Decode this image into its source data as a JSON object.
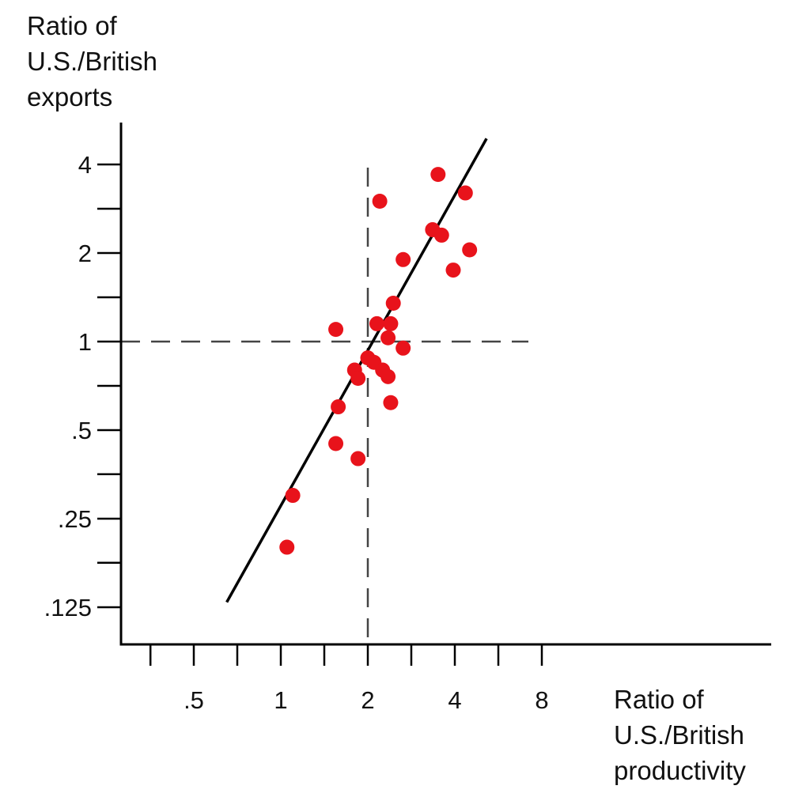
{
  "chart_data": {
    "type": "scatter",
    "title": "",
    "xlabel_lines": [
      "Ratio of",
      "U.S./British",
      "productivity"
    ],
    "ylabel_lines": [
      "Ratio of",
      "U.S./British",
      "exports"
    ],
    "x_scale": "log2",
    "y_scale": "log2",
    "xlim": [
      0.35,
      20
    ],
    "ylim": [
      0.1,
      5.5
    ],
    "x_ticks": [
      {
        "value": 0.354,
        "label": ""
      },
      {
        "value": 0.5,
        "label": ".5"
      },
      {
        "value": 0.707,
        "label": ""
      },
      {
        "value": 1,
        "label": "1"
      },
      {
        "value": 1.414,
        "label": ""
      },
      {
        "value": 2,
        "label": "2"
      },
      {
        "value": 2.828,
        "label": ""
      },
      {
        "value": 4,
        "label": "4"
      },
      {
        "value": 5.657,
        "label": ""
      },
      {
        "value": 8,
        "label": "8"
      }
    ],
    "y_ticks": [
      {
        "value": 0.125,
        "label": ".125"
      },
      {
        "value": 0.177,
        "label": ""
      },
      {
        "value": 0.25,
        "label": ".25"
      },
      {
        "value": 0.354,
        "label": ""
      },
      {
        "value": 0.5,
        "label": ".5"
      },
      {
        "value": 0.707,
        "label": ""
      },
      {
        "value": 1,
        "label": "1"
      },
      {
        "value": 1.414,
        "label": ""
      },
      {
        "value": 2,
        "label": "2"
      },
      {
        "value": 2.828,
        "label": ""
      },
      {
        "value": 4,
        "label": "4"
      }
    ],
    "reference_lines": {
      "x": 2,
      "y": 1,
      "style": "dashed"
    },
    "fit_line": {
      "x": [
        0.65,
        5.15
      ],
      "y": [
        0.13,
        4.9
      ]
    },
    "point_color": "#e8131b",
    "line_color": "#000000",
    "points": [
      {
        "x": 1.1,
        "y": 0.3
      },
      {
        "x": 1.05,
        "y": 0.2
      },
      {
        "x": 1.55,
        "y": 1.1
      },
      {
        "x": 1.55,
        "y": 0.45
      },
      {
        "x": 1.58,
        "y": 0.6
      },
      {
        "x": 1.8,
        "y": 0.8
      },
      {
        "x": 1.85,
        "y": 0.75
      },
      {
        "x": 1.85,
        "y": 0.4
      },
      {
        "x": 2.0,
        "y": 0.88
      },
      {
        "x": 2.1,
        "y": 0.85
      },
      {
        "x": 2.15,
        "y": 1.15
      },
      {
        "x": 2.25,
        "y": 0.8
      },
      {
        "x": 2.2,
        "y": 3.0
      },
      {
        "x": 2.35,
        "y": 0.76
      },
      {
        "x": 2.35,
        "y": 1.03
      },
      {
        "x": 2.4,
        "y": 1.15
      },
      {
        "x": 2.4,
        "y": 0.62
      },
      {
        "x": 2.45,
        "y": 1.35
      },
      {
        "x": 2.65,
        "y": 0.95
      },
      {
        "x": 2.65,
        "y": 1.9
      },
      {
        "x": 3.35,
        "y": 2.4
      },
      {
        "x": 3.5,
        "y": 3.7
      },
      {
        "x": 3.6,
        "y": 2.3
      },
      {
        "x": 3.95,
        "y": 1.75
      },
      {
        "x": 4.35,
        "y": 3.2
      },
      {
        "x": 4.5,
        "y": 2.05
      }
    ]
  }
}
